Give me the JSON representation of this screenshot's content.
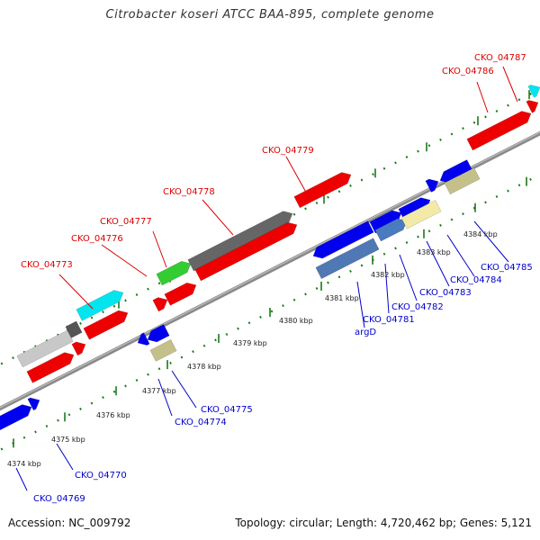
{
  "title": "Citrobacter koseri ATCC BAA-895, complete genome",
  "accession_text": "Accession: NC_009792",
  "summary_text": "Topology: circular; Length: 4,720,462 bp; Genes: 5,121",
  "colors": {
    "forward_label": "#dd0000",
    "reverse_label": "#0000cc",
    "leader": "#dd0000",
    "leader_rev": "#0000cc",
    "backbone": "#8c8c8c",
    "tick": "#1a7a1a"
  },
  "tick_labels": [
    "4374 kbp",
    "4375 kbp",
    "4376 kbp",
    "4377 kbp",
    "4378 kbp",
    "4379 kbp",
    "4380 kbp",
    "4381 kbp",
    "4382 kbp",
    "4383 kbp",
    "4384 kbp"
  ],
  "forward_labels": [
    "CKO_04773",
    "CKO_04776",
    "CKO_04777",
    "CKO_04778",
    "CKO_04779",
    "CKO_04786",
    "CKO_04787"
  ],
  "reverse_labels": [
    "CKO_04769",
    "CKO_04770",
    "CKO_04774",
    "CKO_04775",
    "argD",
    "CKO_04781",
    "CKO_04782",
    "CKO_04783",
    "CKO_04784",
    "CKO_04785"
  ]
}
